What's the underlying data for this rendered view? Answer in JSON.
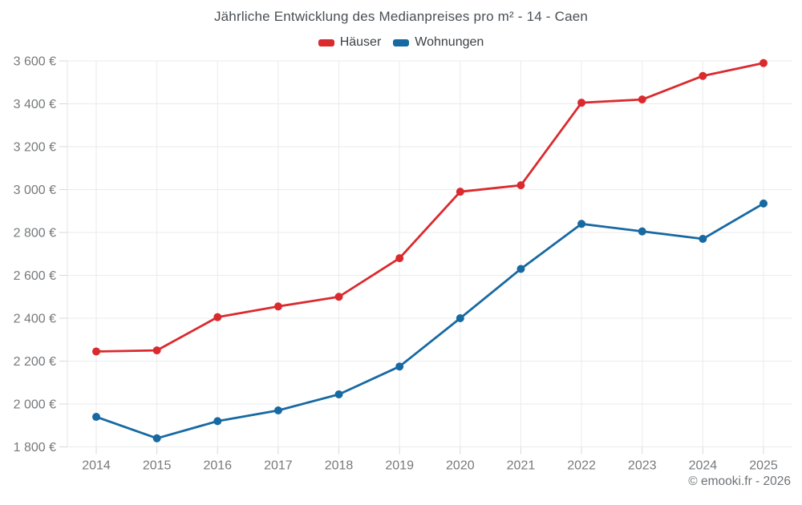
{
  "chart_data": {
    "type": "line",
    "title": "Jährliche Entwicklung des Medianpreises pro m² - 14 - Caen",
    "categories": [
      "2014",
      "2015",
      "2016",
      "2017",
      "2018",
      "2019",
      "2020",
      "2021",
      "2022",
      "2023",
      "2024",
      "2025"
    ],
    "series": [
      {
        "name": "Häuser",
        "color": "#da2a2e",
        "values": [
          2245,
          2250,
          2405,
          2455,
          2500,
          2680,
          2990,
          3020,
          3405,
          3420,
          3530,
          3590
        ]
      },
      {
        "name": "Wohnungen",
        "color": "#1769a2",
        "values": [
          1940,
          1840,
          1920,
          1970,
          2045,
          2175,
          2400,
          2630,
          2840,
          2805,
          2770,
          2935
        ]
      }
    ],
    "ylim": [
      1800,
      3600
    ],
    "ytick_step": 200,
    "y_suffix": " €",
    "grid": true,
    "legend_position": "top",
    "xlabel": "",
    "ylabel": ""
  },
  "footer": {
    "credits": "© emooki.fr - 2026"
  },
  "colors": {
    "grid": "#ebebeb",
    "axis_border": "#e4e4e4",
    "tick": "#d9d9d9",
    "axis_text": "#76797c"
  }
}
